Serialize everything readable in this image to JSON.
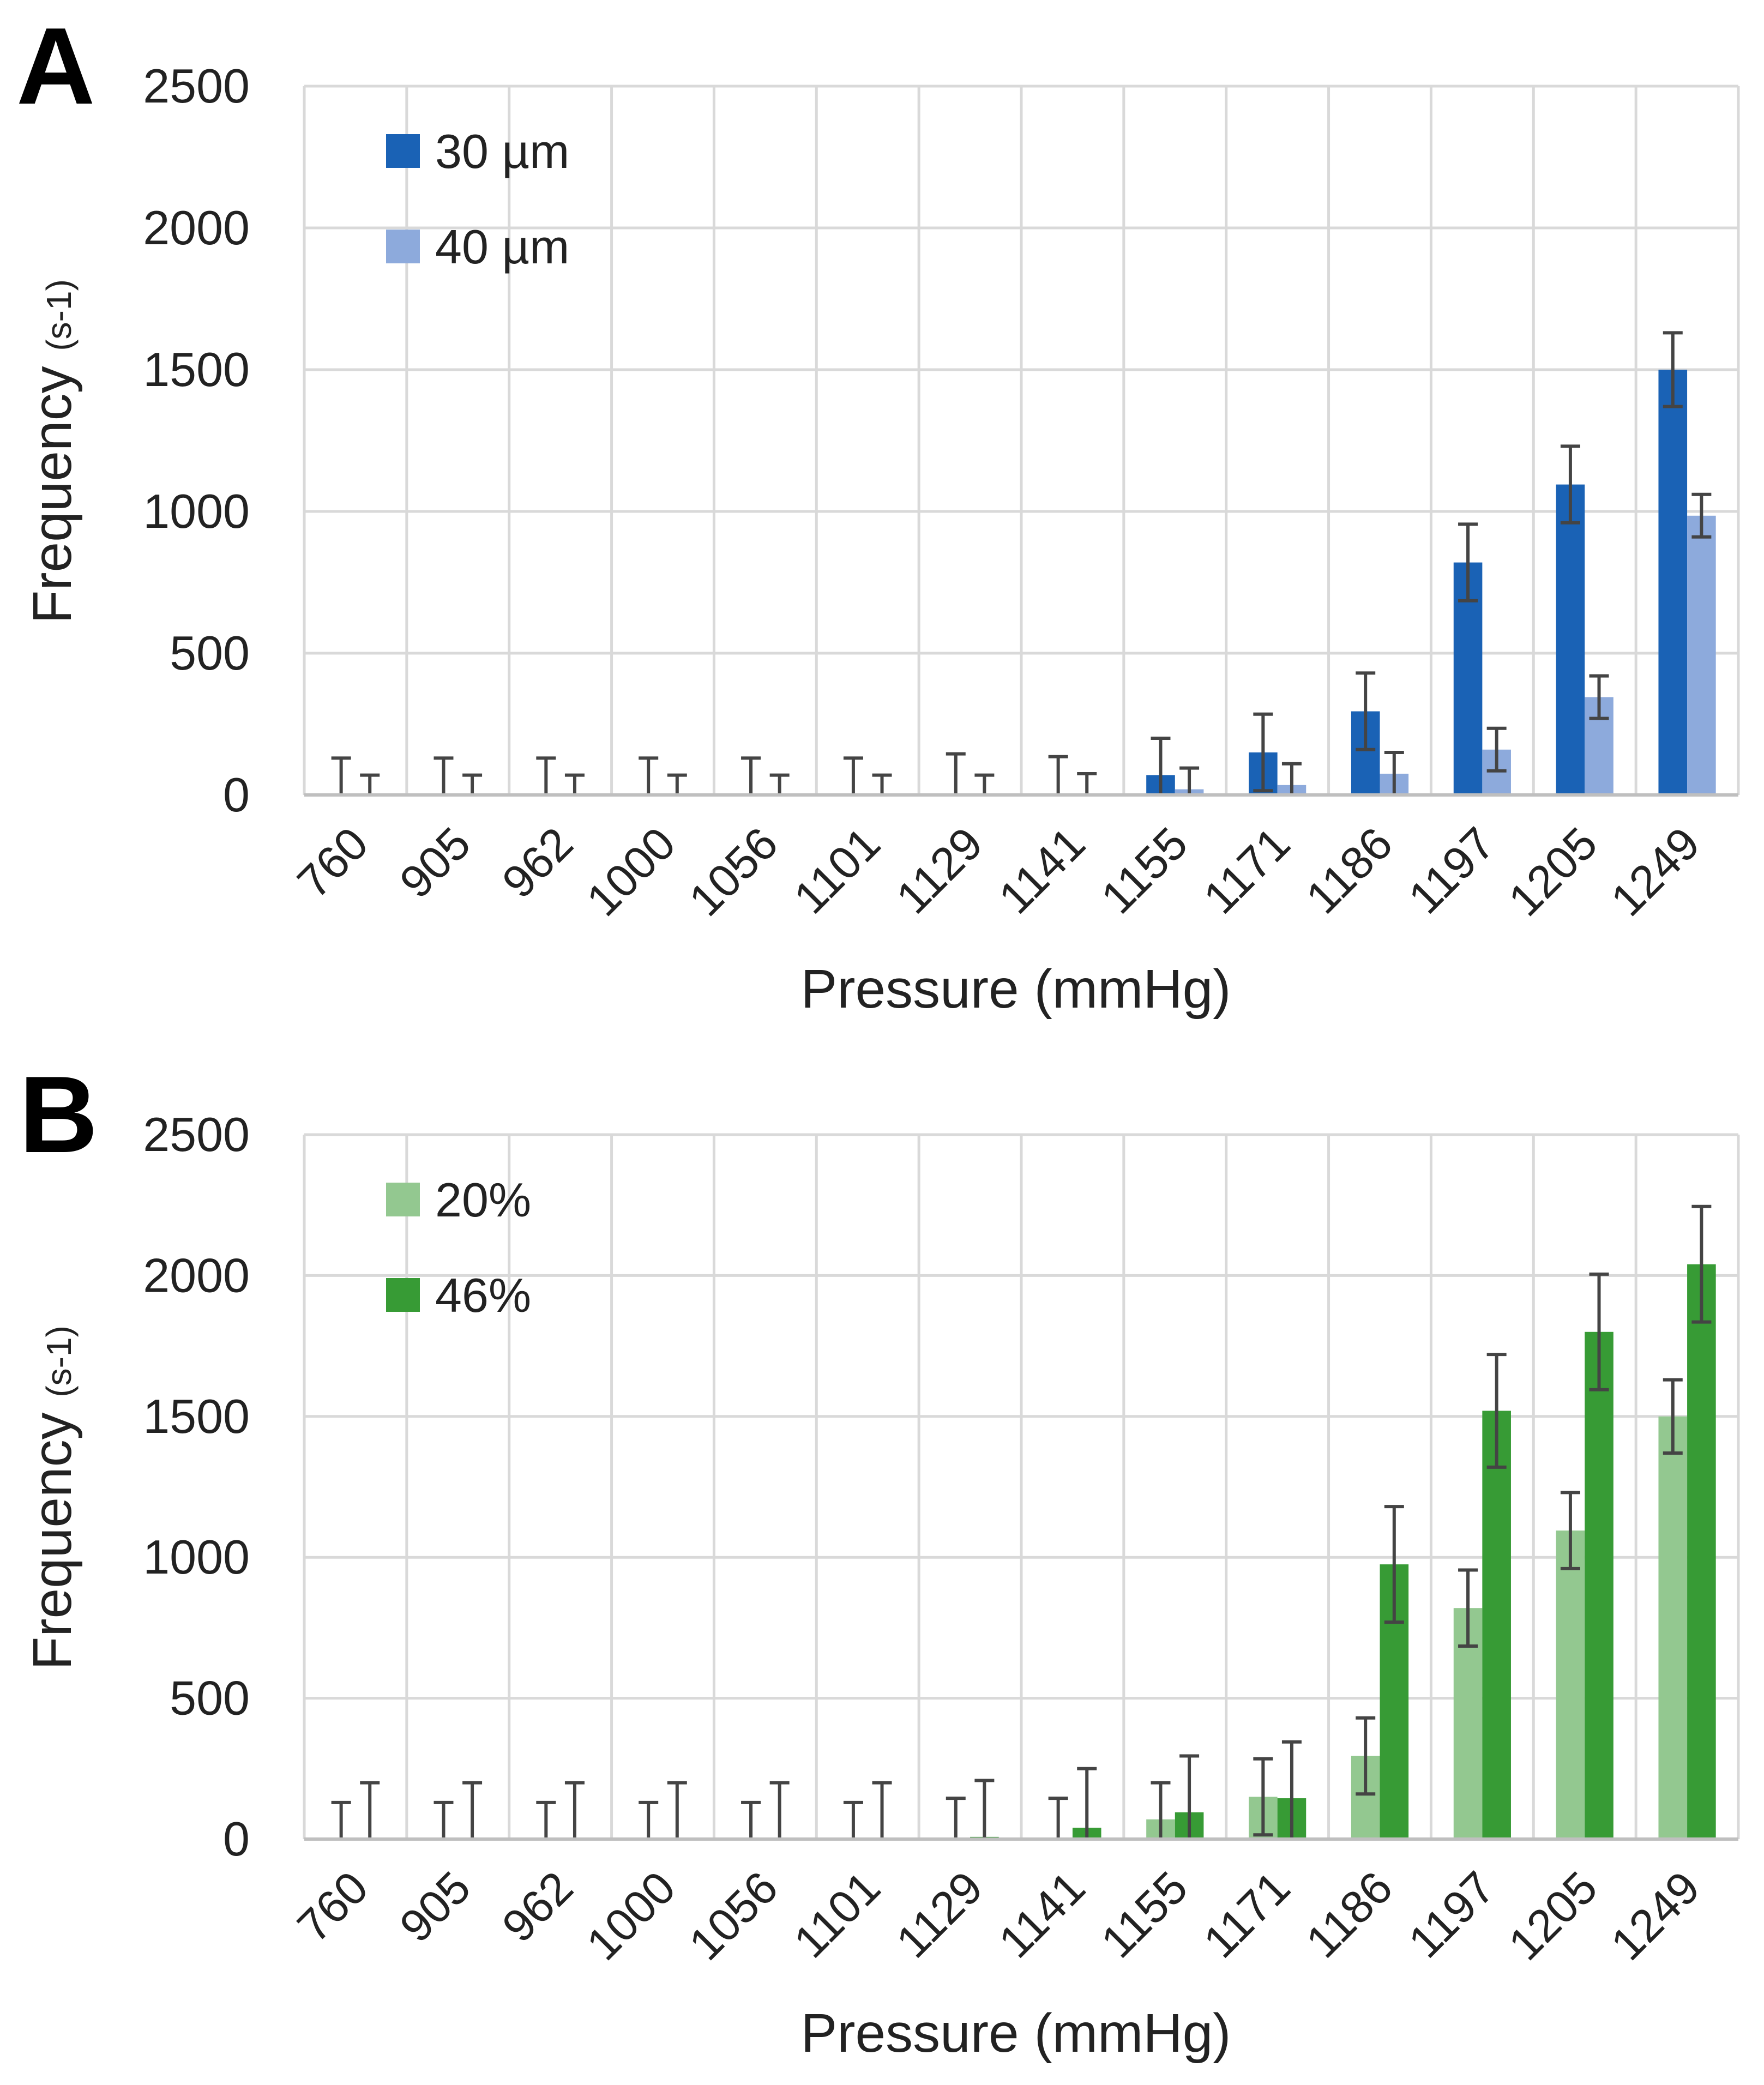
{
  "chart_data": [
    {
      "panel": "A",
      "type": "bar",
      "xlabel": "Pressure (mmHg)",
      "ylabel": "Frequency",
      "ylabel_unit": "(s-1)",
      "ylim": [
        0,
        2500
      ],
      "yticks": [
        "0",
        "500",
        "1000",
        "1500",
        "2000",
        "2500"
      ],
      "grid": true,
      "legend_position": "top-left",
      "categories": [
        "760",
        "905",
        "962",
        "1000",
        "1056",
        "1101",
        "1129",
        "1141",
        "1155",
        "1171",
        "1186",
        "1197",
        "1205",
        "1249"
      ],
      "series": [
        {
          "name": "30 µm",
          "color": "#1a62b5",
          "values": [
            0,
            0,
            0,
            0,
            0,
            0,
            5,
            0,
            70,
            150,
            295,
            820,
            1095,
            1500
          ],
          "errors": [
            130,
            130,
            130,
            130,
            130,
            130,
            140,
            135,
            130,
            135,
            135,
            135,
            135,
            130
          ]
        },
        {
          "name": "40 µm",
          "color": "#8daadc",
          "values": [
            0,
            0,
            0,
            0,
            0,
            0,
            0,
            0,
            20,
            35,
            75,
            160,
            345,
            985
          ],
          "errors": [
            70,
            70,
            70,
            70,
            70,
            70,
            70,
            75,
            75,
            75,
            75,
            75,
            75,
            75
          ]
        }
      ]
    },
    {
      "panel": "B",
      "type": "bar",
      "xlabel": "Pressure (mmHg)",
      "ylabel": "Frequency",
      "ylabel_unit": "(s-1)",
      "ylim": [
        0,
        2500
      ],
      "yticks": [
        "0",
        "500",
        "1000",
        "1500",
        "2000",
        "2500"
      ],
      "grid": true,
      "legend_position": "top-left",
      "categories": [
        "760",
        "905",
        "962",
        "1000",
        "1056",
        "1101",
        "1129",
        "1141",
        "1155",
        "1171",
        "1186",
        "1197",
        "1205",
        "1249"
      ],
      "series": [
        {
          "name": "20%",
          "color": "#93c890",
          "values": [
            0,
            0,
            0,
            0,
            0,
            0,
            5,
            5,
            70,
            150,
            295,
            820,
            1095,
            1500
          ],
          "errors": [
            130,
            130,
            130,
            130,
            130,
            130,
            140,
            140,
            130,
            135,
            135,
            135,
            135,
            130
          ]
        },
        {
          "name": "46%",
          "color": "#379b35",
          "values": [
            0,
            0,
            0,
            0,
            0,
            0,
            8,
            40,
            95,
            145,
            975,
            1520,
            1800,
            2040
          ],
          "errors": [
            200,
            200,
            200,
            200,
            200,
            200,
            200,
            210,
            200,
            200,
            205,
            200,
            205,
            205
          ]
        }
      ]
    }
  ]
}
